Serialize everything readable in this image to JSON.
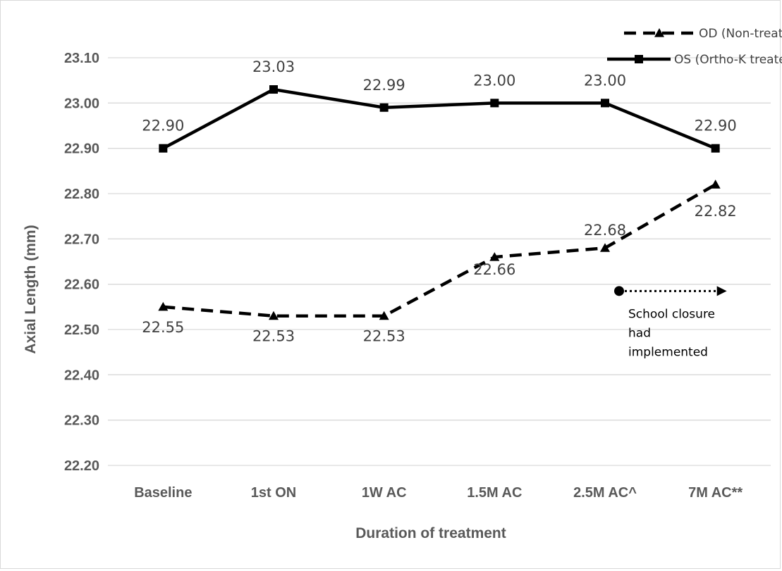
{
  "chart_data": {
    "type": "line",
    "title": "",
    "xlabel": "Duration of treatment",
    "ylabel": "Axial Length (mm)",
    "ylim": [
      22.2,
      23.1
    ],
    "yticks": [
      "22.20",
      "22.30",
      "22.40",
      "22.50",
      "22.60",
      "22.70",
      "22.80",
      "22.90",
      "23.00",
      "23.10"
    ],
    "categories": [
      "Baseline",
      "1st ON",
      "1W AC",
      "1.5M AC",
      "2.5M AC^",
      "7M AC**"
    ],
    "grid": true,
    "legend_position": "top-right",
    "series": [
      {
        "name": "OD (Non-treated)",
        "values": [
          22.55,
          22.53,
          22.53,
          22.66,
          22.68,
          22.82
        ],
        "labels": [
          "22.55",
          "22.53",
          "22.53",
          "22.66",
          "22.68",
          "22.82"
        ],
        "style": "dashed",
        "marker": "triangle",
        "color": "#000000"
      },
      {
        "name": "OS (Ortho-K treated)",
        "values": [
          22.9,
          23.03,
          22.99,
          23.0,
          23.0,
          22.9
        ],
        "labels": [
          "22.90",
          "23.03",
          "22.99",
          "23.00",
          "23.00",
          "22.90"
        ],
        "style": "solid",
        "marker": "square",
        "color": "#000000"
      }
    ],
    "annotation": {
      "text_lines": [
        "School closure",
        "had",
        "implemented"
      ],
      "from_category": "2.5M AC^",
      "to_category": "7M AC**",
      "y_value": 22.585
    }
  }
}
